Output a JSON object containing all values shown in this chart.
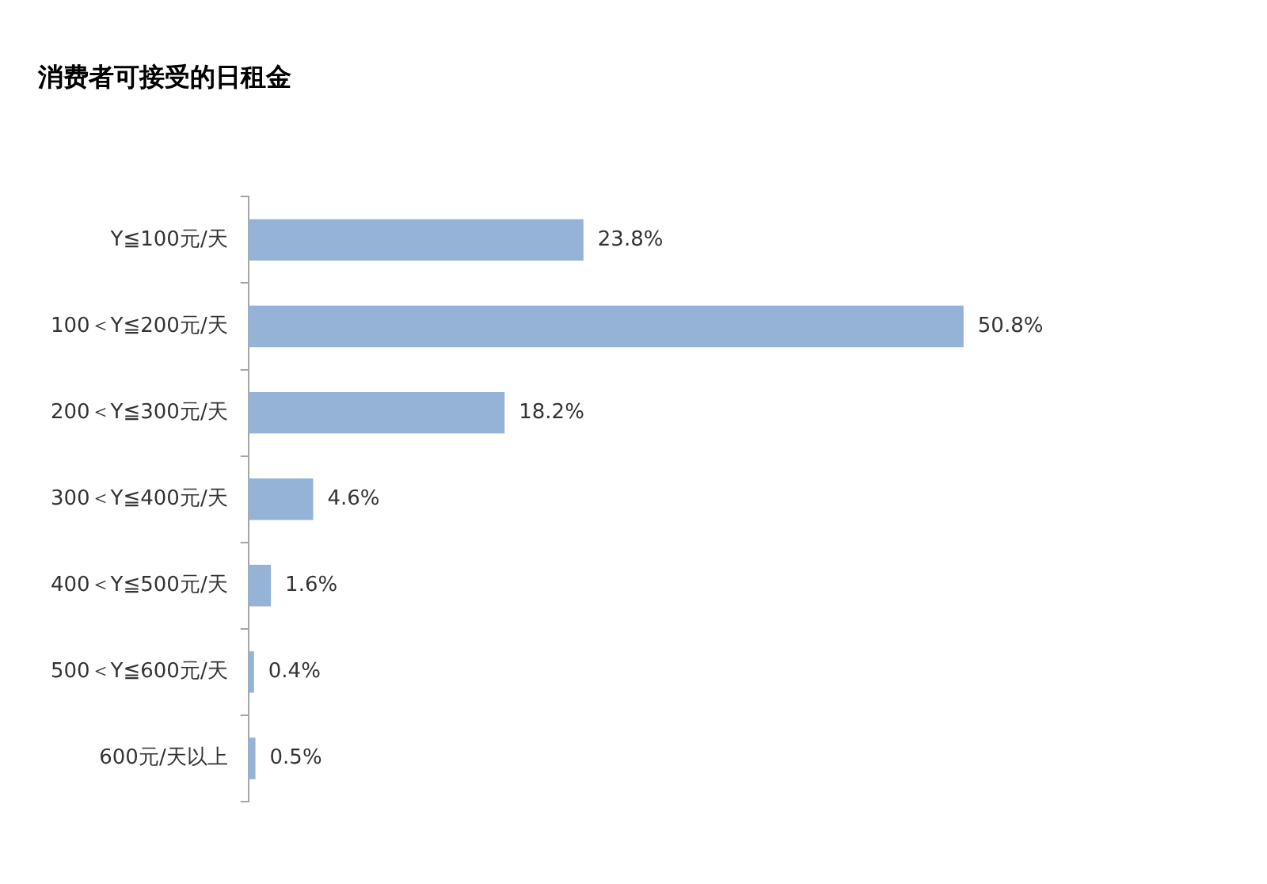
{
  "chart_data": {
    "type": "bar",
    "orientation": "horizontal",
    "title": "消费者可接受的日租金",
    "categories": [
      "Y≦100元/天",
      "100＜Y≦200元/天",
      "200＜Y≦300元/天",
      "300＜Y≦400元/天",
      "400＜Y≦500元/天",
      "500＜Y≦600元/天",
      "600元/天以上"
    ],
    "values": [
      23.8,
      50.8,
      18.2,
      4.6,
      1.6,
      0.4,
      0.5
    ],
    "value_labels": [
      "23.8%",
      "50.8%",
      "18.2%",
      "4.6%",
      "1.6%",
      "0.4%",
      "0.5%"
    ],
    "color": "#95b3d7",
    "grid": false,
    "legend": false,
    "tick_labels": "y"
  }
}
